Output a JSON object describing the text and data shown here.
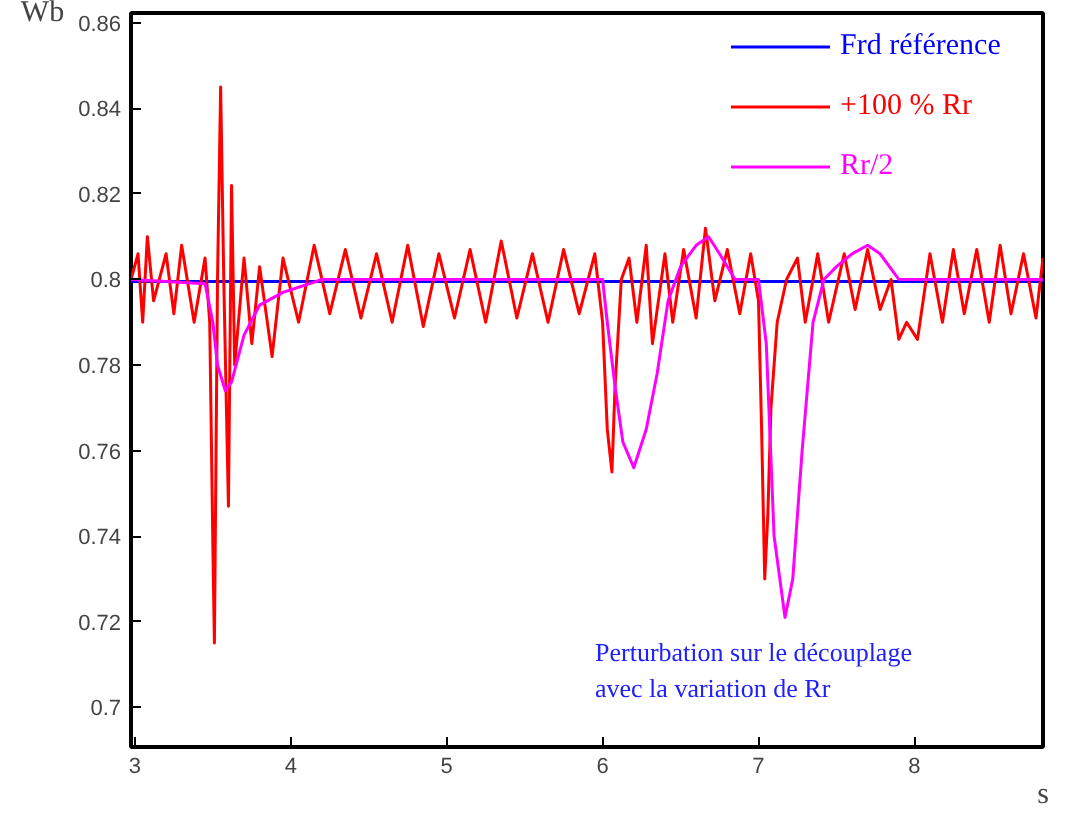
{
  "chart_data": {
    "type": "line",
    "xlabel": "s",
    "ylabel": "Wb",
    "xlim": [
      2.975,
      8.825
    ],
    "ylim": [
      0.6907,
      0.8623
    ],
    "xticks": [
      3,
      4,
      5,
      6,
      7,
      8
    ],
    "yticks": [
      0.7,
      0.72,
      0.74,
      0.76,
      0.78,
      0.8,
      0.82,
      0.84,
      0.86
    ],
    "grid": false,
    "legend": "top right",
    "annotations": [
      "Perturbation sur le découplage\navec la variation de Rr"
    ],
    "series": [
      {
        "name": "Frd référence",
        "color": "#0000ff",
        "x": [
          2.975,
          8.825
        ],
        "values": [
          0.7995,
          0.7995
        ]
      },
      {
        "name": "+100 % Rr",
        "color": "#ff0000",
        "x": [
          2.975,
          3.02,
          3.05,
          3.08,
          3.12,
          3.2,
          3.25,
          3.3,
          3.38,
          3.45,
          3.48,
          3.5,
          3.51,
          3.53,
          3.55,
          3.57,
          3.6,
          3.62,
          3.64,
          3.7,
          3.75,
          3.8,
          3.88,
          3.95,
          4.05,
          4.15,
          4.25,
          4.35,
          4.45,
          4.55,
          4.65,
          4.75,
          4.85,
          4.95,
          5.05,
          5.15,
          5.25,
          5.35,
          5.45,
          5.55,
          5.65,
          5.75,
          5.85,
          5.95,
          6.0,
          6.03,
          6.06,
          6.08,
          6.12,
          6.17,
          6.22,
          6.28,
          6.32,
          6.4,
          6.45,
          6.52,
          6.6,
          6.66,
          6.72,
          6.8,
          6.88,
          6.95,
          7.0,
          7.02,
          7.04,
          7.06,
          7.08,
          7.12,
          7.18,
          7.25,
          7.3,
          7.38,
          7.45,
          7.55,
          7.62,
          7.7,
          7.78,
          7.85,
          7.9,
          7.95,
          8.02,
          8.1,
          8.18,
          8.25,
          8.32,
          8.4,
          8.48,
          8.55,
          8.62,
          8.7,
          8.78,
          8.825
        ],
        "values": [
          0.8,
          0.806,
          0.79,
          0.81,
          0.795,
          0.806,
          0.792,
          0.808,
          0.79,
          0.805,
          0.79,
          0.738,
          0.715,
          0.8,
          0.845,
          0.8,
          0.747,
          0.822,
          0.78,
          0.805,
          0.785,
          0.803,
          0.782,
          0.805,
          0.79,
          0.808,
          0.792,
          0.807,
          0.791,
          0.806,
          0.79,
          0.808,
          0.789,
          0.806,
          0.791,
          0.807,
          0.79,
          0.809,
          0.791,
          0.806,
          0.79,
          0.807,
          0.792,
          0.806,
          0.79,
          0.765,
          0.755,
          0.775,
          0.8,
          0.805,
          0.79,
          0.808,
          0.785,
          0.806,
          0.79,
          0.807,
          0.791,
          0.812,
          0.795,
          0.807,
          0.792,
          0.806,
          0.795,
          0.765,
          0.73,
          0.745,
          0.77,
          0.79,
          0.8,
          0.805,
          0.79,
          0.806,
          0.79,
          0.806,
          0.793,
          0.807,
          0.793,
          0.8,
          0.786,
          0.79,
          0.786,
          0.806,
          0.79,
          0.807,
          0.792,
          0.807,
          0.79,
          0.808,
          0.792,
          0.806,
          0.791,
          0.805
        ]
      },
      {
        "name": "Rr/2",
        "color": "#ff00ff",
        "x": [
          2.975,
          3.45,
          3.5,
          3.53,
          3.58,
          3.62,
          3.7,
          3.8,
          3.95,
          4.2,
          4.6,
          5.0,
          5.5,
          6.0,
          6.03,
          6.08,
          6.13,
          6.2,
          6.28,
          6.35,
          6.42,
          6.5,
          6.6,
          6.68,
          6.75,
          6.85,
          7.0,
          7.05,
          7.1,
          7.17,
          7.22,
          7.28,
          7.35,
          7.42,
          7.5,
          7.6,
          7.7,
          7.78,
          7.9,
          8.2,
          8.5,
          8.825
        ],
        "values": [
          0.8,
          0.799,
          0.79,
          0.78,
          0.774,
          0.776,
          0.787,
          0.794,
          0.797,
          0.8,
          0.8,
          0.8,
          0.8,
          0.8,
          0.79,
          0.775,
          0.762,
          0.756,
          0.765,
          0.778,
          0.795,
          0.803,
          0.808,
          0.81,
          0.806,
          0.8,
          0.8,
          0.785,
          0.74,
          0.721,
          0.73,
          0.76,
          0.79,
          0.8,
          0.803,
          0.806,
          0.808,
          0.806,
          0.8,
          0.8,
          0.8,
          0.8
        ]
      }
    ]
  }
}
